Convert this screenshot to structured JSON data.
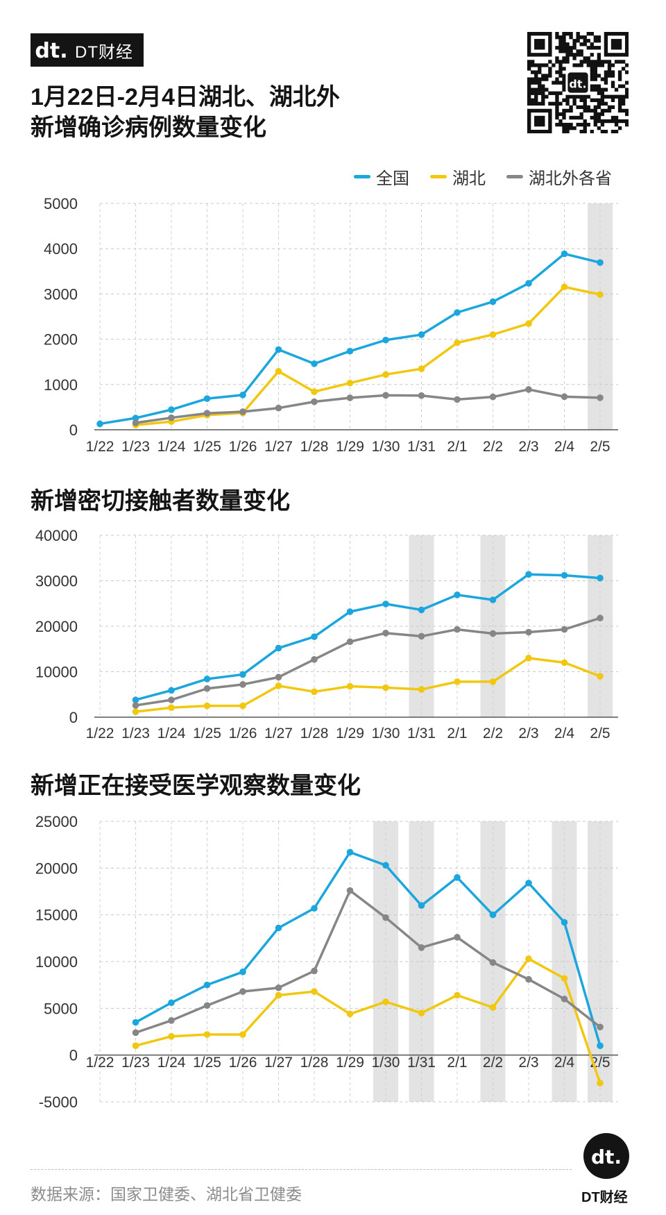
{
  "header": {
    "brand": "DT财经",
    "logo_mark": "dt.",
    "title_line1": "1月22日-2月4日湖北、湖北外",
    "title_line2": "新增确诊病例数量变化"
  },
  "legend": [
    {
      "name": "全国",
      "color": "#1ba6dd"
    },
    {
      "name": "湖北",
      "color": "#f2c70f"
    },
    {
      "name": "湖北外各省",
      "color": "#868686"
    }
  ],
  "chart_data": [
    {
      "type": "line",
      "title": "1月22日-2月4日湖北、湖北外新增确诊病例数量变化",
      "x": [
        "1/22",
        "1/23",
        "1/24",
        "1/25",
        "1/26",
        "1/27",
        "1/28",
        "1/29",
        "1/30",
        "1/31",
        "2/1",
        "2/2",
        "2/3",
        "2/4",
        "2/5"
      ],
      "ylim": [
        0,
        5000
      ],
      "yticks": [
        0,
        1000,
        2000,
        3000,
        4000,
        5000
      ],
      "highlight": [
        "2/5"
      ],
      "series": [
        {
          "name": "全国",
          "color": "#1ba6dd",
          "values": [
            131,
            259,
            444,
            688,
            769,
            1771,
            1459,
            1737,
            1982,
            2102,
            2590,
            2829,
            3235,
            3887,
            3694
          ]
        },
        {
          "name": "湖北",
          "color": "#f2c70f",
          "values": [
            null,
            105,
            180,
            323,
            371,
            1291,
            840,
            1032,
            1220,
            1347,
            1921,
            2103,
            2345,
            3156,
            2987
          ]
        },
        {
          "name": "湖北外各省",
          "color": "#868686",
          "values": [
            null,
            154,
            264,
            365,
            398,
            480,
            619,
            705,
            762,
            755,
            669,
            726,
            890,
            731,
            707
          ]
        }
      ]
    },
    {
      "type": "line",
      "title": "新增密切接触者数量变化",
      "x": [
        "1/22",
        "1/23",
        "1/24",
        "1/25",
        "1/26",
        "1/27",
        "1/28",
        "1/29",
        "1/30",
        "1/31",
        "2/1",
        "2/2",
        "2/3",
        "2/4",
        "2/5"
      ],
      "ylim": [
        0,
        40000
      ],
      "yticks": [
        0,
        10000,
        20000,
        30000,
        40000
      ],
      "highlight": [
        "1/31",
        "2/2",
        "2/5"
      ],
      "series": [
        {
          "name": "全国",
          "color": "#1ba6dd",
          "values": [
            null,
            3800,
            5900,
            8400,
            9400,
            15200,
            17700,
            23200,
            24900,
            23600,
            26900,
            25800,
            31400,
            31200,
            30600
          ]
        },
        {
          "name": "湖北",
          "color": "#f2c70f",
          "values": [
            null,
            1200,
            2100,
            2500,
            2500,
            6900,
            5600,
            6800,
            6500,
            6100,
            7800,
            7800,
            13000,
            12000,
            9000
          ]
        },
        {
          "name": "湖北外各省",
          "color": "#868686",
          "values": [
            null,
            2600,
            3800,
            6300,
            7200,
            8800,
            12700,
            16600,
            18500,
            17800,
            19300,
            18400,
            18700,
            19300,
            21800
          ]
        }
      ]
    },
    {
      "type": "line",
      "title": "新增正在接受医学观察数量变化",
      "x": [
        "1/22",
        "1/23",
        "1/24",
        "1/25",
        "1/26",
        "1/27",
        "1/28",
        "1/29",
        "1/30",
        "1/31",
        "2/1",
        "2/2",
        "2/3",
        "2/4",
        "2/5"
      ],
      "ylim": [
        -5000,
        25000
      ],
      "yticks": [
        -5000,
        0,
        5000,
        10000,
        15000,
        20000,
        25000
      ],
      "highlight": [
        "1/30",
        "1/31",
        "2/2",
        "2/4",
        "2/5"
      ],
      "series": [
        {
          "name": "全国",
          "color": "#1ba6dd",
          "values": [
            null,
            3500,
            5600,
            7500,
            8900,
            13600,
            15700,
            21700,
            20300,
            16000,
            19000,
            15000,
            18400,
            14200,
            1000
          ]
        },
        {
          "name": "湖北",
          "color": "#f2c70f",
          "values": [
            null,
            1000,
            2000,
            2200,
            2200,
            6400,
            6800,
            4400,
            5700,
            4500,
            6400,
            5100,
            10300,
            8200,
            -3000
          ]
        },
        {
          "name": "湖北外各省",
          "color": "#868686",
          "values": [
            null,
            2400,
            3700,
            5300,
            6800,
            7200,
            9000,
            17600,
            14700,
            11500,
            12600,
            9900,
            8100,
            6000,
            3000
          ]
        }
      ]
    }
  ],
  "footer": {
    "source": "数据来源：国家卫健委、湖北省卫健委",
    "badge_label": "DT财经"
  }
}
